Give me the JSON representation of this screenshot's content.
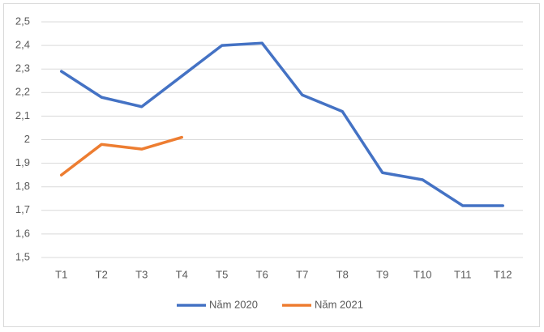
{
  "chart_data": {
    "type": "line",
    "categories": [
      "T1",
      "T2",
      "T3",
      "T4",
      "T5",
      "T6",
      "T7",
      "T8",
      "T9",
      "T10",
      "T11",
      "T12"
    ],
    "series": [
      {
        "name": "Năm 2020",
        "color": "#4472c4",
        "values": [
          2.29,
          2.18,
          2.14,
          2.27,
          2.4,
          2.41,
          2.19,
          2.12,
          1.86,
          1.83,
          1.72,
          1.72
        ]
      },
      {
        "name": "Năm 2021",
        "color": "#ed7d31",
        "values": [
          1.85,
          1.98,
          1.96,
          2.01,
          null,
          null,
          null,
          null,
          null,
          null,
          null,
          null
        ]
      }
    ],
    "ylim": [
      1.5,
      2.5
    ],
    "yticks": [
      {
        "value": 1.5,
        "label": "1,5"
      },
      {
        "value": 1.6,
        "label": "1,6"
      },
      {
        "value": 1.7,
        "label": "1,7"
      },
      {
        "value": 1.8,
        "label": "1,8"
      },
      {
        "value": 1.9,
        "label": "1,9"
      },
      2,
      {
        "value": 2.1,
        "label": "2,1"
      },
      {
        "value": 2.2,
        "label": "2,2"
      },
      {
        "value": 2.3,
        "label": "2,3"
      },
      {
        "value": 2.4,
        "label": "2,4"
      },
      {
        "value": 2.5,
        "label": "2,5"
      }
    ],
    "grid": true,
    "legend": "bottom"
  }
}
